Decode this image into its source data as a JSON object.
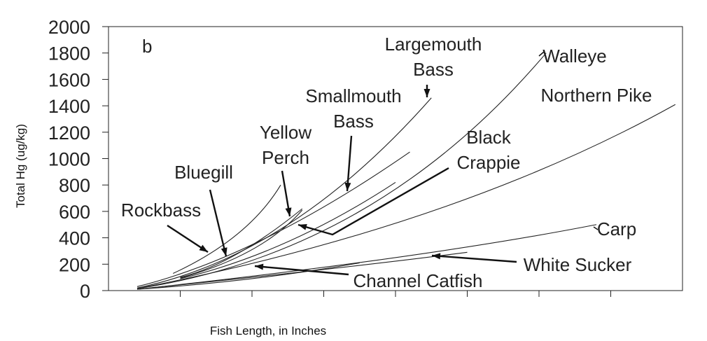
{
  "chart_data": {
    "type": "line",
    "panel_label": "b",
    "xlabel": "Fish Length, in Inches",
    "ylabel": "Total Hg (ug/kg)",
    "ylim": [
      0,
      2000
    ],
    "yticks": [
      "0",
      "200",
      "400",
      "600",
      "800",
      "1000",
      "1200",
      "1400",
      "1600",
      "1800",
      "2000"
    ],
    "xlim": [
      0,
      8
    ],
    "grid": false,
    "series": [
      {
        "name": "Rockbass",
        "x": [
          0.9,
          1.8,
          2.4
        ],
        "y": [
          130,
          430,
          800
        ]
      },
      {
        "name": "Bluegill",
        "x": [
          1.0,
          1.8,
          2.7
        ],
        "y": [
          100,
          280,
          620
        ]
      },
      {
        "name": "Yellow Perch",
        "x": [
          1.0,
          2.0,
          2.7
        ],
        "y": [
          95,
          310,
          610
        ]
      },
      {
        "name": "Smallmouth Bass",
        "x": [
          0.4,
          2.2,
          4.2
        ],
        "y": [
          30,
          400,
          1050
        ]
      },
      {
        "name": "Largemouth Bass",
        "x": [
          0.4,
          2.5,
          4.5
        ],
        "y": [
          20,
          500,
          1460
        ]
      },
      {
        "name": "Black Crappie",
        "x": [
          1.0,
          2.5,
          4.0
        ],
        "y": [
          90,
          370,
          820
        ]
      },
      {
        "name": "Walleye",
        "x": [
          0.4,
          3.5,
          6.1
        ],
        "y": [
          15,
          600,
          1800
        ]
      },
      {
        "name": "Northern Pike",
        "x": [
          0.4,
          4.5,
          7.9
        ],
        "y": [
          15,
          600,
          1410
        ]
      },
      {
        "name": "Carp",
        "x": [
          0.4,
          4.0,
          6.8
        ],
        "y": [
          10,
          250,
          500
        ]
      },
      {
        "name": "White Sucker",
        "x": [
          0.4,
          3.0,
          5.0
        ],
        "y": [
          10,
          160,
          290
        ]
      },
      {
        "name": "Channel Catfish",
        "x": [
          0.4,
          2.0,
          3.5
        ],
        "y": [
          10,
          90,
          210
        ]
      }
    ],
    "annotations": [
      {
        "id": "rockbass",
        "lines": [
          "Rockbass"
        ]
      },
      {
        "id": "bluegill",
        "lines": [
          "Bluegill"
        ]
      },
      {
        "id": "yellow-perch",
        "lines": [
          "Yellow",
          "Perch"
        ]
      },
      {
        "id": "smallmouth-bass",
        "lines": [
          "Smallmouth",
          "Bass"
        ]
      },
      {
        "id": "largemouth-bass",
        "lines": [
          "Largemouth",
          "Bass"
        ]
      },
      {
        "id": "walleye",
        "lines": [
          "Walleye"
        ]
      },
      {
        "id": "northern-pike",
        "lines": [
          "Northern Pike"
        ]
      },
      {
        "id": "black-crappie",
        "lines": [
          "Black",
          "Crappie"
        ]
      },
      {
        "id": "carp",
        "lines": [
          "Carp"
        ]
      },
      {
        "id": "white-sucker",
        "lines": [
          "White Sucker"
        ]
      },
      {
        "id": "channel-catfish",
        "lines": [
          "Channel Catfish"
        ]
      }
    ]
  }
}
